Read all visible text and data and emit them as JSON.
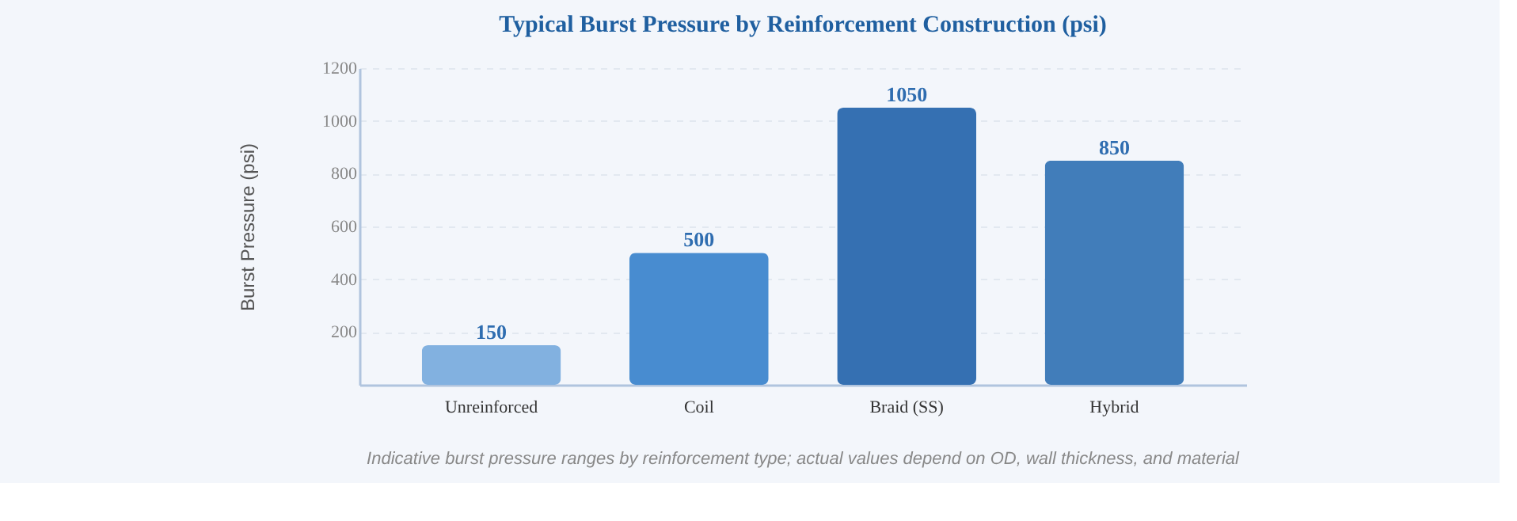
{
  "chart_data": {
    "type": "bar",
    "title": "Typical Burst Pressure by Reinforcement Construction (psi)",
    "ylabel": "Burst Pressure (psi)",
    "categories": [
      "Unreinforced",
      "Coil",
      "Braid (SS)",
      "Hybrid"
    ],
    "values": [
      150,
      500,
      1050,
      850
    ],
    "colors": [
      "#82b1e0",
      "#488cd0",
      "#3570b2",
      "#417dba"
    ],
    "ylim": [
      0,
      1200
    ],
    "yticks": [
      {
        "value": 0,
        "label": null
      },
      200,
      400,
      600,
      800,
      1000,
      1200
    ],
    "grid": "y",
    "data_labels": true,
    "annotations": [
      "Indicative burst pressure ranges by reinforcement type; actual values depend on OD, wall thickness, and material"
    ]
  }
}
